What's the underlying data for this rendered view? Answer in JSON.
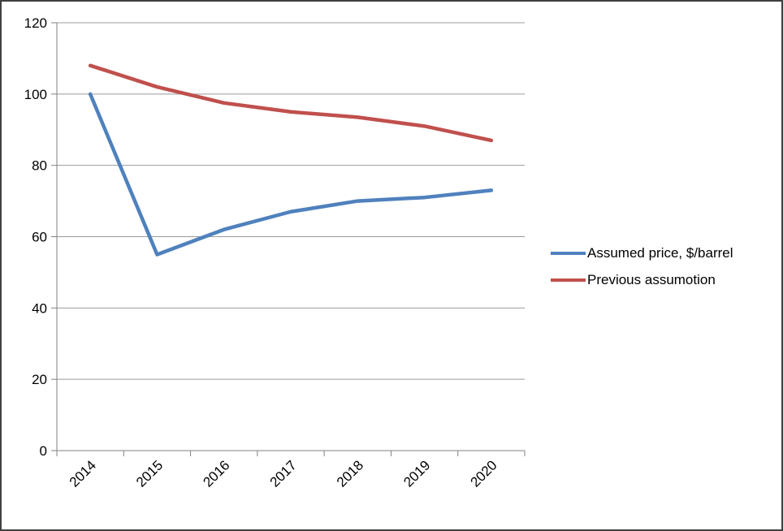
{
  "chart_data": {
    "type": "line",
    "title": "",
    "xlabel": "",
    "ylabel": "",
    "categories": [
      "2014",
      "2015",
      "2016",
      "2017",
      "2018",
      "2019",
      "2020"
    ],
    "series": [
      {
        "name": "Assumed price, $/barrel",
        "color": "#4F81BD",
        "values": [
          100,
          55,
          62,
          67,
          70,
          71,
          73
        ]
      },
      {
        "name": "Previous assumotion",
        "color": "#C0504D",
        "values": [
          108,
          102,
          97.5,
          95,
          93.5,
          91,
          87
        ]
      }
    ],
    "ylim": [
      0,
      120
    ],
    "ytick_step": 20,
    "grid": true,
    "legend_position": "right"
  },
  "style": {
    "grid_color": "#9B9B9B",
    "axis_color": "#808080",
    "text_color": "#000000",
    "background": "#FFFFFF",
    "border_color": "#404040",
    "tick_font_size": 17
  }
}
